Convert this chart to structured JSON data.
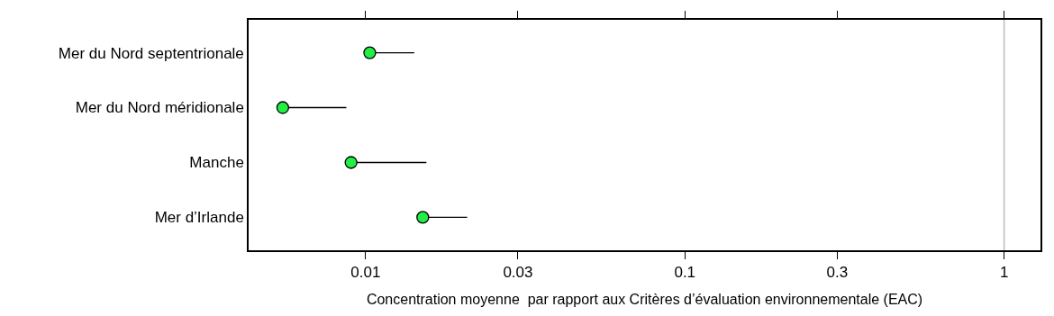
{
  "chart_data": {
    "type": "scatter",
    "orientation": "horizontal",
    "xlabel": "Concentration moyenne  par rapport aux Critères d’évaluation environnementale (EAC)",
    "categories": [
      "Mer du Nord septentrionale",
      "Mer du Nord méridionale",
      "Manche",
      "Mer d’Irlande"
    ],
    "series": [
      {
        "color": "#22ee44",
        "values": [
          0.0103,
          0.0055,
          0.009,
          0.0151
        ],
        "errors": [
          [
            0.0103,
            0.0142
          ],
          [
            0.0055,
            0.0087
          ],
          [
            0.009,
            0.0155
          ],
          [
            0.0151,
            0.0208
          ]
        ]
      }
    ],
    "log": "x",
    "xlim": [
      0.0043,
      1.3
    ],
    "xticks": [
      0.01,
      0.03,
      0.1,
      0.3,
      1
    ],
    "ref_lines": [
      {
        "axis": "x",
        "value": 1,
        "color": "#bbbbbb"
      }
    ],
    "marker": "circle",
    "grid": false
  }
}
